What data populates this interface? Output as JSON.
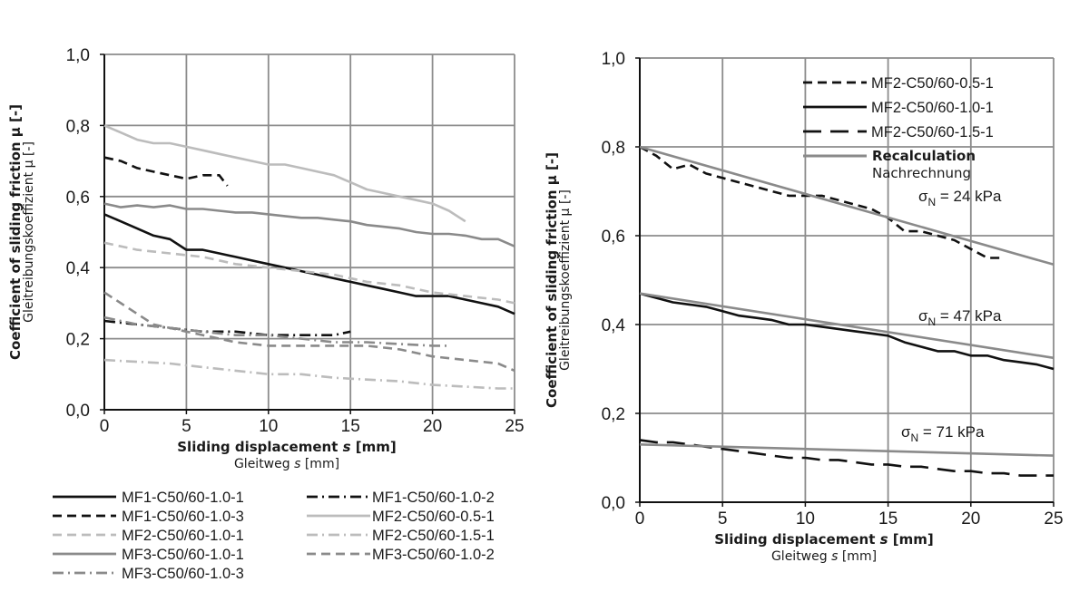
{
  "chart_data": [
    {
      "type": "line",
      "xlabel": "Sliding displacement s [mm]",
      "xlabel_main": "Sliding displacement ",
      "xlabel_var": "s",
      "xlabel_unit": " [mm]",
      "xlabel2": "Gleitweg s [mm]",
      "xlabel2_main": "Gleitweg ",
      "xlabel2_var": "s",
      "xlabel2_unit": " [mm]",
      "ylabel": "Coefficient of sliding friction µ [-]",
      "ylabel2": "Gleitreibungskoeffizient µ [-]",
      "xlim": [
        0,
        25
      ],
      "ylim": [
        0,
        1.0
      ],
      "xticks": [
        0,
        5,
        10,
        15,
        20,
        25
      ],
      "xtick_labels": [
        "0",
        "5",
        "10",
        "15",
        "20",
        "25"
      ],
      "yticks": [
        0,
        0.2,
        0.4,
        0.6,
        0.8,
        1.0
      ],
      "ytick_labels": [
        "0,0",
        "0,2",
        "0,4",
        "0,6",
        "0,8",
        "1,0"
      ],
      "grid": true,
      "legend_position": "below",
      "series": [
        {
          "name": "MF1-C50/60-1.0-1",
          "color": "#111111",
          "style": "solid",
          "x": [
            0,
            1,
            2,
            3,
            4,
            5,
            6,
            7,
            8,
            9,
            10,
            11,
            12,
            13,
            14,
            15,
            16,
            17,
            18,
            19,
            20,
            21,
            22,
            23,
            24,
            25
          ],
          "y": [
            0.55,
            0.53,
            0.51,
            0.49,
            0.48,
            0.45,
            0.45,
            0.44,
            0.43,
            0.42,
            0.41,
            0.4,
            0.39,
            0.38,
            0.37,
            0.36,
            0.35,
            0.34,
            0.33,
            0.32,
            0.32,
            0.32,
            0.31,
            0.3,
            0.29,
            0.27
          ]
        },
        {
          "name": "MF1-C50/60-1.0-2",
          "color": "#111111",
          "style": "dashdot",
          "x": [
            0,
            2,
            4,
            6,
            8,
            10,
            12,
            14,
            15
          ],
          "y": [
            0.25,
            0.24,
            0.23,
            0.22,
            0.22,
            0.21,
            0.21,
            0.21,
            0.22
          ]
        },
        {
          "name": "MF1-C50/60-1.0-3",
          "color": "#111111",
          "style": "dash",
          "x": [
            0,
            1,
            2,
            3,
            4,
            5,
            6,
            7,
            7.5
          ],
          "y": [
            0.71,
            0.7,
            0.68,
            0.67,
            0.66,
            0.65,
            0.66,
            0.66,
            0.63
          ]
        },
        {
          "name": "MF2-C50/60-0.5-1",
          "color": "#bcbcbc",
          "style": "solid",
          "x": [
            0,
            1,
            2,
            3,
            4,
            5,
            6,
            7,
            8,
            9,
            10,
            11,
            12,
            13,
            14,
            15,
            16,
            17,
            18,
            19,
            20,
            21,
            22
          ],
          "y": [
            0.8,
            0.78,
            0.76,
            0.75,
            0.75,
            0.74,
            0.73,
            0.72,
            0.71,
            0.7,
            0.69,
            0.69,
            0.68,
            0.67,
            0.66,
            0.64,
            0.62,
            0.61,
            0.6,
            0.59,
            0.58,
            0.56,
            0.53
          ]
        },
        {
          "name": "MF2-C50/60-1.0-1",
          "color": "#bcbcbc",
          "style": "dash",
          "x": [
            0,
            2,
            4,
            6,
            8,
            10,
            12,
            14,
            16,
            18,
            20,
            22,
            24,
            25
          ],
          "y": [
            0.47,
            0.45,
            0.44,
            0.43,
            0.41,
            0.4,
            0.39,
            0.38,
            0.36,
            0.35,
            0.33,
            0.32,
            0.31,
            0.3
          ]
        },
        {
          "name": "MF2-C50/60-1.5-1",
          "color": "#bcbcbc",
          "style": "dashdot",
          "x": [
            0,
            2,
            4,
            6,
            8,
            10,
            12,
            14,
            16,
            18,
            20,
            22,
            24,
            25
          ],
          "y": [
            0.14,
            0.135,
            0.13,
            0.12,
            0.11,
            0.1,
            0.1,
            0.09,
            0.085,
            0.08,
            0.07,
            0.065,
            0.06,
            0.06
          ]
        },
        {
          "name": "MF3-C50/60-1.0-1",
          "color": "#8a8a8a",
          "style": "solid",
          "x": [
            0,
            1,
            2,
            3,
            4,
            5,
            6,
            7,
            8,
            9,
            10,
            11,
            12,
            13,
            14,
            15,
            16,
            17,
            18,
            19,
            20,
            21,
            22,
            23,
            24,
            25
          ],
          "y": [
            0.58,
            0.57,
            0.575,
            0.57,
            0.575,
            0.565,
            0.565,
            0.56,
            0.555,
            0.555,
            0.55,
            0.545,
            0.54,
            0.54,
            0.535,
            0.53,
            0.52,
            0.515,
            0.51,
            0.5,
            0.495,
            0.495,
            0.49,
            0.48,
            0.48,
            0.46
          ]
        },
        {
          "name": "MF3-C50/60-1.0-2",
          "color": "#8a8a8a",
          "style": "dash",
          "x": [
            0,
            1,
            2,
            3,
            4,
            5,
            6,
            7,
            8,
            10,
            12,
            14,
            15,
            16,
            18,
            20,
            22,
            24,
            25
          ],
          "y": [
            0.33,
            0.3,
            0.27,
            0.24,
            0.23,
            0.22,
            0.21,
            0.2,
            0.19,
            0.18,
            0.18,
            0.18,
            0.18,
            0.18,
            0.17,
            0.15,
            0.14,
            0.13,
            0.11
          ]
        },
        {
          "name": "MF3-C50/60-1.0-3",
          "color": "#8a8a8a",
          "style": "dashdot",
          "x": [
            0,
            2,
            4,
            6,
            8,
            10,
            12,
            14,
            16,
            18,
            20,
            21
          ],
          "y": [
            0.26,
            0.24,
            0.23,
            0.22,
            0.21,
            0.21,
            0.2,
            0.19,
            0.19,
            0.185,
            0.18,
            0.18
          ]
        }
      ]
    },
    {
      "type": "line",
      "xlabel": "Sliding displacement s [mm]",
      "xlabel_main": "Sliding displacement ",
      "xlabel_var": "s",
      "xlabel_unit": " [mm]",
      "xlabel2": "Gleitweg s [mm]",
      "xlabel2_main": "Gleitweg ",
      "xlabel2_var": "s",
      "xlabel2_unit": " [mm]",
      "ylabel": "Coefficient of sliding friction µ [-]",
      "ylabel2": "Gleitreibungskoeffizient µ [-]",
      "xlim": [
        0,
        25
      ],
      "ylim": [
        0,
        1.0
      ],
      "xticks": [
        0,
        5,
        10,
        15,
        20,
        25
      ],
      "xtick_labels": [
        "0",
        "5",
        "10",
        "15",
        "20",
        "25"
      ],
      "yticks": [
        0,
        0.2,
        0.4,
        0.6,
        0.8,
        1.0
      ],
      "ytick_labels": [
        "0,0",
        "0,2",
        "0,4",
        "0,6",
        "0,8",
        "1,0"
      ],
      "grid": true,
      "legend_position": "top-right",
      "legend_extra": {
        "label": "Recalculation",
        "sublabel": "Nachrechnung"
      },
      "series": [
        {
          "name": "MF2-C50/60-0.5-1",
          "color": "#111111",
          "style": "dash",
          "x": [
            0,
            1,
            2,
            3,
            4,
            5,
            6,
            7,
            8,
            9,
            10,
            11,
            12,
            13,
            14,
            15,
            16,
            17,
            18,
            19,
            20,
            21,
            22
          ],
          "y": [
            0.8,
            0.78,
            0.75,
            0.76,
            0.74,
            0.73,
            0.72,
            0.71,
            0.7,
            0.69,
            0.69,
            0.69,
            0.68,
            0.67,
            0.66,
            0.64,
            0.61,
            0.61,
            0.6,
            0.59,
            0.57,
            0.55,
            0.55
          ]
        },
        {
          "name": "MF2-C50/60-1.0-1",
          "color": "#111111",
          "style": "solid",
          "x": [
            0,
            1,
            2,
            3,
            4,
            5,
            6,
            7,
            8,
            9,
            10,
            11,
            12,
            13,
            14,
            15,
            16,
            17,
            18,
            19,
            20,
            21,
            22,
            23,
            24,
            25
          ],
          "y": [
            0.47,
            0.46,
            0.45,
            0.445,
            0.44,
            0.43,
            0.42,
            0.415,
            0.41,
            0.4,
            0.4,
            0.395,
            0.39,
            0.385,
            0.38,
            0.375,
            0.36,
            0.35,
            0.34,
            0.34,
            0.33,
            0.33,
            0.32,
            0.315,
            0.31,
            0.3
          ]
        },
        {
          "name": "MF2-C50/60-1.5-1",
          "color": "#111111",
          "style": "longdash",
          "x": [
            0,
            1,
            2,
            3,
            4,
            5,
            6,
            7,
            8,
            9,
            10,
            11,
            12,
            13,
            14,
            15,
            16,
            17,
            18,
            19,
            20,
            21,
            22,
            23,
            24,
            25
          ],
          "y": [
            0.14,
            0.135,
            0.135,
            0.13,
            0.125,
            0.12,
            0.115,
            0.11,
            0.105,
            0.1,
            0.1,
            0.095,
            0.095,
            0.09,
            0.085,
            0.085,
            0.08,
            0.08,
            0.075,
            0.07,
            0.07,
            0.065,
            0.065,
            0.06,
            0.06,
            0.06
          ]
        },
        {
          "name": "Recalculation 24 kPa",
          "color": "#8a8a8a",
          "style": "solid",
          "x": [
            0,
            25
          ],
          "y": [
            0.8,
            0.535
          ]
        },
        {
          "name": "Recalculation 47 kPa",
          "color": "#8a8a8a",
          "style": "solid",
          "x": [
            0,
            25
          ],
          "y": [
            0.47,
            0.325
          ]
        },
        {
          "name": "Recalculation 71 kPa",
          "color": "#8a8a8a",
          "style": "solid",
          "x": [
            0,
            25
          ],
          "y": [
            0.13,
            0.105
          ]
        }
      ],
      "annotations": [
        {
          "text_sym": "σ",
          "text_sub": "N",
          "text_val": " = 24 kPa"
        },
        {
          "text_sym": "σ",
          "text_sub": "N",
          "text_val": " = 47 kPa"
        },
        {
          "text_sym": "σ",
          "text_sub": "N",
          "text_val": " = 71 kPa"
        }
      ]
    }
  ]
}
